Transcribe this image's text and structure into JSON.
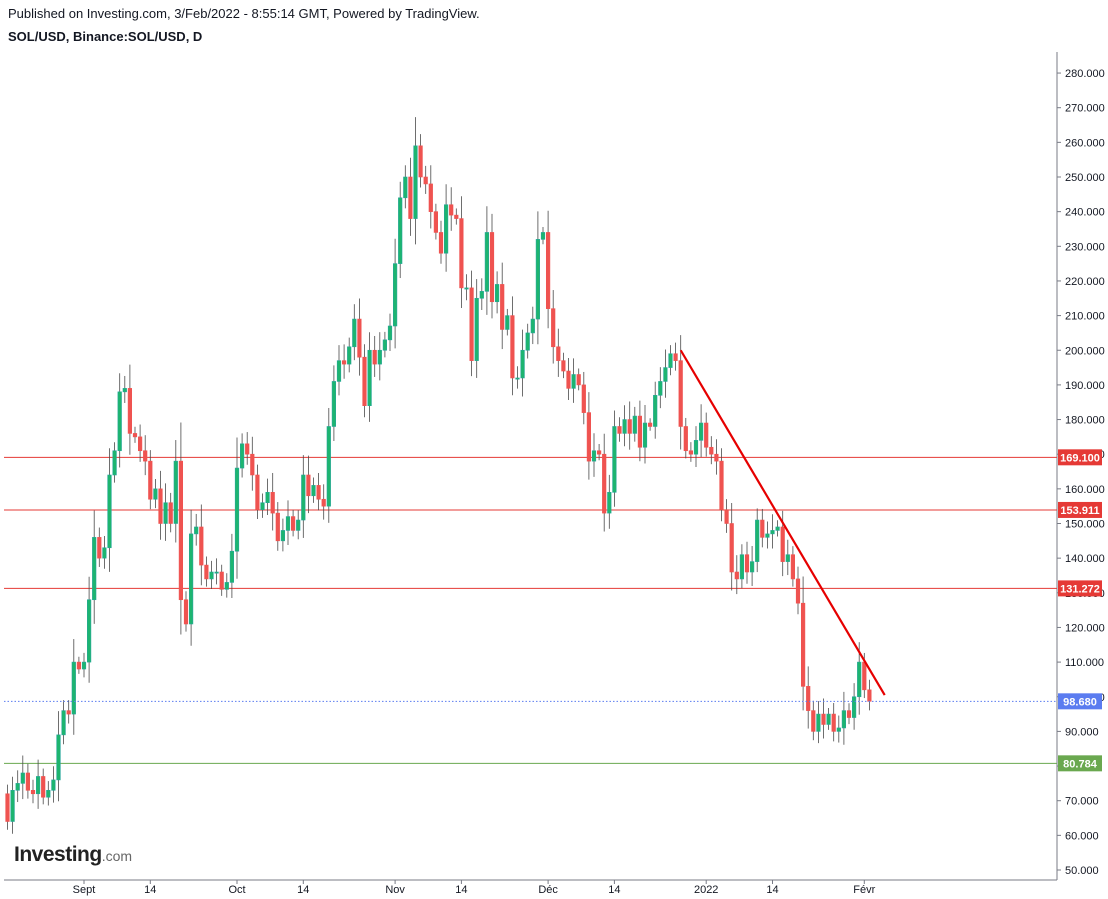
{
  "header": {
    "published": "Published on Investing.com, 3/Feb/2022 - 8:55:14 GMT, Powered by TradingView.",
    "symbol": "SOL/USD, Binance:SOL/USD, D"
  },
  "logo": {
    "main": "Investing",
    "suffix": ".com"
  },
  "colors": {
    "up": "#26a69a",
    "up_fill": "#1db56f",
    "down": "#ef5350",
    "level_line": "#e53935",
    "trend_line": "#e60000",
    "support": "#6aa84f",
    "price": "#5b7cf0"
  },
  "chart_data": {
    "type": "candlestick",
    "ylim": [
      45,
      285
    ],
    "y_ticks": [
      "50.000",
      "60.000",
      "70.000",
      "80.000",
      "90.000",
      "100.000",
      "110.000",
      "120.000",
      "130.000",
      "140.000",
      "150.000",
      "160.000",
      "170.000",
      "180.000",
      "190.000",
      "200.000",
      "210.000",
      "220.000",
      "230.000",
      "240.000",
      "250.000",
      "260.000",
      "270.000",
      "280.000"
    ],
    "x_ticks": [
      {
        "label": "Sept",
        "index": 15
      },
      {
        "label": "14",
        "index": 28
      },
      {
        "label": "Oct",
        "index": 45
      },
      {
        "label": "14",
        "index": 58
      },
      {
        "label": "Nov",
        "index": 76
      },
      {
        "label": "14",
        "index": 89
      },
      {
        "label": "Déc",
        "index": 106
      },
      {
        "label": "14",
        "index": 119
      },
      {
        "label": "2022",
        "index": 137
      },
      {
        "label": "14",
        "index": 150
      },
      {
        "label": "Févr",
        "index": 168
      }
    ],
    "levels": [
      {
        "value": 169.1,
        "label": "169.100",
        "kind": "resistance"
      },
      {
        "value": 153.911,
        "label": "153.911",
        "kind": "resistance"
      },
      {
        "value": 131.272,
        "label": "131.272",
        "kind": "resistance"
      },
      {
        "value": 80.784,
        "label": "80.784",
        "kind": "support"
      }
    ],
    "last_price": {
      "value": 98.68,
      "label": "98.680"
    },
    "trendline": {
      "from": {
        "index": 132,
        "value": 200
      },
      "to": {
        "index": 172,
        "value": 100.5
      }
    },
    "candles": [
      [
        72.0,
        64.0
      ],
      [
        64.0,
        73.0
      ],
      [
        73.0,
        75.0
      ],
      [
        75.0,
        78.0
      ],
      [
        78.0,
        73.0
      ],
      [
        73.0,
        72.0
      ],
      [
        72.0,
        77.0
      ],
      [
        77.0,
        71.0
      ],
      [
        71.0,
        73.0
      ],
      [
        73.0,
        76.0
      ],
      [
        76.0,
        89.0
      ],
      [
        89.0,
        96.0
      ],
      [
        96.0,
        95.0
      ],
      [
        95.0,
        110.0
      ],
      [
        110.0,
        108.0
      ],
      [
        108.0,
        110.0
      ],
      [
        110.0,
        128.0
      ],
      [
        128.0,
        146.0
      ],
      [
        146.0,
        140.0
      ],
      [
        140.0,
        143.0
      ],
      [
        143.0,
        164.0
      ],
      [
        164.0,
        171.0
      ],
      [
        171.0,
        188.0
      ],
      [
        188.0,
        189.0
      ],
      [
        189.0,
        176.0
      ],
      [
        176.0,
        175.0
      ],
      [
        175.0,
        171.0
      ],
      [
        171.0,
        168.0
      ],
      [
        168.0,
        157.0
      ],
      [
        157.0,
        160.0
      ],
      [
        160.0,
        150.0
      ],
      [
        150.0,
        156.0
      ],
      [
        156.0,
        150.0
      ],
      [
        150.0,
        168.0
      ],
      [
        168.0,
        128.0
      ],
      [
        128.0,
        121.0
      ],
      [
        121.0,
        147.0
      ],
      [
        147.0,
        149.0
      ],
      [
        149.0,
        138.0
      ],
      [
        138.0,
        134.0
      ],
      [
        134.0,
        136.0
      ],
      [
        136.0,
        136.0
      ],
      [
        136.0,
        131.0
      ],
      [
        131.0,
        133.0
      ],
      [
        133.0,
        142.0
      ],
      [
        142.0,
        166.0
      ],
      [
        166.0,
        173.0
      ],
      [
        173.0,
        170.0
      ],
      [
        170.0,
        164.0
      ],
      [
        164.0,
        154.0
      ],
      [
        154.0,
        156.0
      ],
      [
        156.0,
        159.0
      ],
      [
        159.0,
        153.0
      ],
      [
        153.0,
        145.0
      ],
      [
        145.0,
        148.0
      ],
      [
        148.0,
        152.0
      ],
      [
        152.0,
        148.0
      ],
      [
        148.0,
        151.0
      ],
      [
        151.0,
        164.0
      ],
      [
        164.0,
        158.0
      ],
      [
        158.0,
        161.0
      ],
      [
        161.0,
        157.0
      ],
      [
        157.0,
        155.0
      ],
      [
        155.0,
        178.0
      ],
      [
        178.0,
        191.0
      ],
      [
        191.0,
        197.0
      ],
      [
        197.0,
        196.0
      ],
      [
        196.0,
        201.0
      ],
      [
        201.0,
        209.0
      ],
      [
        209.0,
        198.0
      ],
      [
        198.0,
        184.0
      ],
      [
        184.0,
        200.0
      ],
      [
        200.0,
        196.0
      ],
      [
        196.0,
        200.0
      ],
      [
        200.0,
        203.0
      ],
      [
        203.0,
        207.0
      ],
      [
        207.0,
        225.0
      ],
      [
        225.0,
        244.0
      ],
      [
        244.0,
        250.0
      ],
      [
        250.0,
        238.0
      ],
      [
        238.0,
        259.0
      ],
      [
        259.0,
        250.0
      ],
      [
        250.0,
        248.0
      ],
      [
        248.0,
        240.0
      ],
      [
        240.0,
        234.0
      ],
      [
        234.0,
        228.0
      ],
      [
        228.0,
        242.0
      ],
      [
        242.0,
        239.0
      ],
      [
        239.0,
        238.0
      ],
      [
        238.0,
        218.0
      ],
      [
        218.0,
        218.0
      ],
      [
        218.0,
        197.0
      ],
      [
        197.0,
        215.0
      ],
      [
        215.0,
        217.0
      ],
      [
        217.0,
        234.0
      ],
      [
        234.0,
        214.0
      ],
      [
        214.0,
        219.0
      ],
      [
        219.0,
        206.0
      ],
      [
        206.0,
        210.0
      ],
      [
        210.0,
        192.0
      ],
      [
        192.0,
        192.0
      ],
      [
        192.0,
        200.0
      ],
      [
        200.0,
        205.0
      ],
      [
        205.0,
        209.0
      ],
      [
        209.0,
        232.0
      ],
      [
        232.0,
        234.0
      ],
      [
        234.0,
        212.0
      ],
      [
        212.0,
        201.0
      ],
      [
        201.0,
        197.0
      ],
      [
        197.0,
        194.0
      ],
      [
        194.0,
        189.0
      ],
      [
        189.0,
        193.0
      ],
      [
        193.0,
        190.0
      ],
      [
        190.0,
        182.0
      ],
      [
        182.0,
        168.0
      ],
      [
        168.0,
        171.0
      ],
      [
        171.0,
        170.0
      ],
      [
        170.0,
        153.0
      ],
      [
        153.0,
        159.0
      ],
      [
        159.0,
        178.0
      ],
      [
        178.0,
        176.0
      ],
      [
        176.0,
        180.0
      ],
      [
        180.0,
        176.0
      ],
      [
        176.0,
        181.0
      ],
      [
        181.0,
        172.0
      ],
      [
        172.0,
        179.0
      ],
      [
        179.0,
        178.0
      ],
      [
        178.0,
        187.0
      ],
      [
        187.0,
        191.0
      ],
      [
        191.0,
        195.0
      ],
      [
        195.0,
        199.0
      ],
      [
        199.0,
        197.0
      ],
      [
        197.0,
        178.0
      ],
      [
        178.0,
        171.0
      ],
      [
        171.0,
        170.0
      ],
      [
        170.0,
        174.0
      ],
      [
        174.0,
        179.0
      ],
      [
        179.0,
        172.0
      ],
      [
        172.0,
        170.0
      ],
      [
        170.0,
        168.0
      ],
      [
        168.0,
        154.0
      ],
      [
        154.0,
        150.0
      ],
      [
        150.0,
        136.0
      ],
      [
        136.0,
        134.0
      ],
      [
        134.0,
        141.0
      ],
      [
        141.0,
        136.0
      ],
      [
        136.0,
        139.0
      ],
      [
        139.0,
        151.0
      ],
      [
        151.0,
        146.0
      ],
      [
        146.0,
        147.0
      ],
      [
        147.0,
        148.0
      ],
      [
        148.0,
        149.0
      ],
      [
        149.0,
        139.0
      ],
      [
        139.0,
        141.0
      ],
      [
        141.0,
        134.0
      ],
      [
        134.0,
        127.0
      ],
      [
        127.0,
        103.0
      ],
      [
        103.0,
        96.0
      ],
      [
        96.0,
        90.0
      ],
      [
        90.0,
        95.0
      ],
      [
        95.0,
        92.0
      ],
      [
        92.0,
        95.0
      ],
      [
        95.0,
        90.0
      ],
      [
        90.0,
        91.0
      ],
      [
        91.0,
        96.0
      ],
      [
        96.0,
        94.0
      ],
      [
        94.0,
        100.0
      ],
      [
        100.0,
        110.0
      ],
      [
        110.0,
        102.0
      ],
      [
        102.0,
        98.68
      ]
    ]
  }
}
